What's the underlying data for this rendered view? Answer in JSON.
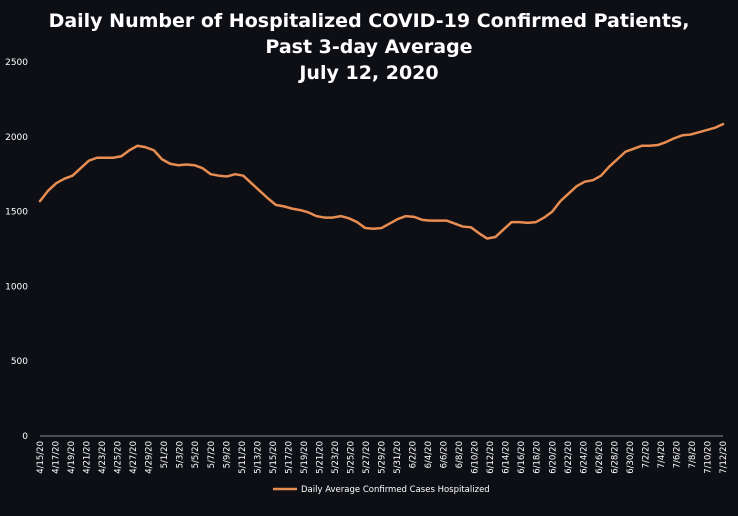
{
  "chart_data": {
    "type": "line",
    "title_lines": [
      "Daily Number of Hospitalized COVID-19 Confirmed Patients,",
      "Past 3-day Average",
      "July 12, 2020"
    ],
    "xlabel": "",
    "ylabel": "",
    "ylim": [
      0,
      2500
    ],
    "yticks": [
      0,
      500,
      1000,
      1500,
      2000,
      2500
    ],
    "grid": false,
    "legend_position": "bottom-center",
    "x_tick_labels": [
      "4/15/20",
      "4/17/20",
      "4/19/20",
      "4/21/20",
      "4/23/20",
      "4/25/20",
      "4/27/20",
      "4/29/20",
      "5/1/20",
      "5/3/20",
      "5/5/20",
      "5/7/20",
      "5/9/20",
      "5/11/20",
      "5/13/20",
      "5/15/20",
      "5/17/20",
      "5/19/20",
      "5/21/20",
      "5/23/20",
      "5/25/20",
      "5/27/20",
      "5/29/20",
      "5/31/20",
      "6/2/20",
      "6/4/20",
      "6/6/20",
      "6/8/20",
      "6/10/20",
      "6/12/20",
      "6/14/20",
      "6/16/20",
      "6/18/20",
      "6/20/20",
      "6/22/20",
      "6/24/20",
      "6/26/20",
      "6/28/20",
      "6/30/20",
      "7/2/20",
      "7/4/20",
      "7/6/20",
      "7/8/20",
      "7/10/20",
      "7/12/20"
    ],
    "series": [
      {
        "name": "Daily Average Confirmed Cases Hospitalized",
        "color": "#e88d52",
        "values": [
          1570,
          1640,
          1690,
          1720,
          1740,
          1790,
          1840,
          1860,
          1860,
          1860,
          1870,
          1910,
          1940,
          1930,
          1910,
          1850,
          1820,
          1810,
          1815,
          1810,
          1790,
          1750,
          1740,
          1735,
          1750,
          1740,
          1690,
          1640,
          1590,
          1545,
          1535,
          1520,
          1510,
          1495,
          1470,
          1460,
          1460,
          1470,
          1455,
          1430,
          1390,
          1385,
          1390,
          1420,
          1450,
          1470,
          1465,
          1445,
          1440,
          1440,
          1440,
          1420,
          1400,
          1395,
          1355,
          1320,
          1330,
          1380,
          1430,
          1430,
          1425,
          1430,
          1460,
          1500,
          1570,
          1620,
          1670,
          1700,
          1710,
          1740,
          1800,
          1850,
          1900,
          1920,
          1940,
          1940,
          1945,
          1965,
          1990,
          2010,
          2015,
          2030,
          2045,
          2060,
          2085
        ]
      }
    ]
  }
}
